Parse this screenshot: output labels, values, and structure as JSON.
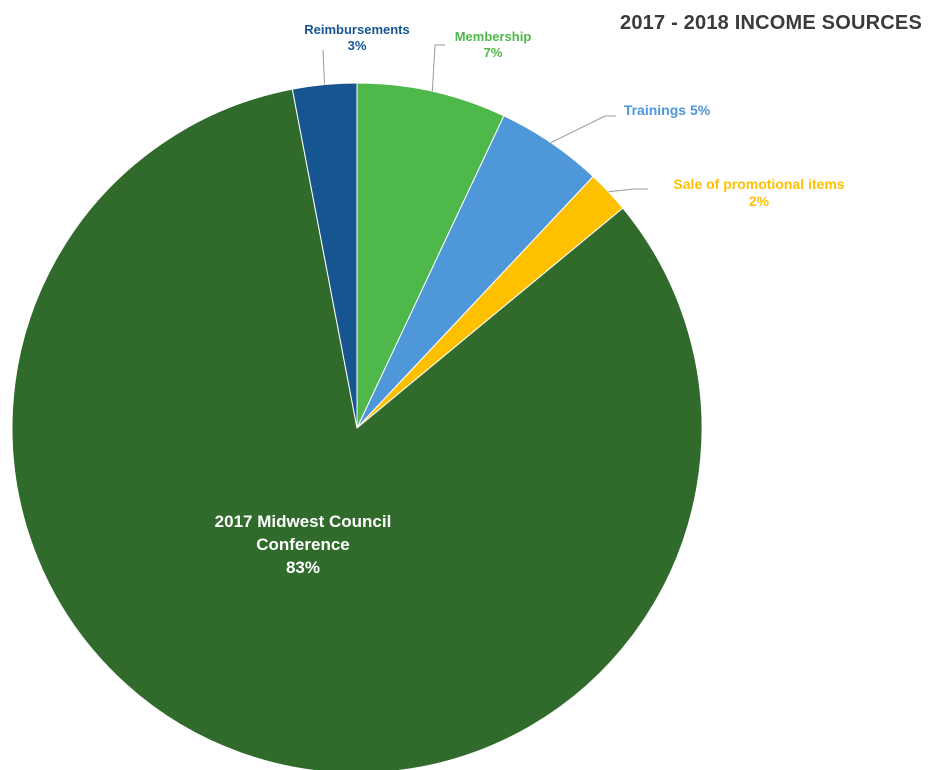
{
  "chart_data": {
    "type": "pie",
    "title": "2017 - 2018 INCOME SOURCES",
    "slices": [
      {
        "label": "Membership",
        "value": 7,
        "value_label": "7%",
        "color": "#4fb84a"
      },
      {
        "label": "Trainings",
        "value": 5,
        "value_label": "5%",
        "color": "#4e97d8"
      },
      {
        "label": "Sale of promotional items",
        "value": 2,
        "value_label": "2%",
        "color": "#ffc000"
      },
      {
        "label": "2017 Midwest Council Conference",
        "value": 83,
        "value_label": "83%",
        "color": "#316b2c"
      },
      {
        "label": "Reimbursements",
        "value": 3,
        "value_label": "3%",
        "color": "#175590"
      }
    ],
    "start_position": "top",
    "direction": "clockwise"
  },
  "labels": {
    "reimbursements": {
      "name": "Reimbursements",
      "pct": "3%",
      "color": "#175590"
    },
    "membership": {
      "name": "Membership",
      "pct": "7%",
      "color": "#4fb84a"
    },
    "trainings": {
      "text": "Trainings 5%",
      "color": "#4e97d8"
    },
    "sale": {
      "name": "Sale of promotional items",
      "pct": "2%",
      "color": "#ffc000"
    },
    "conference": {
      "line1": "2017 Midwest Council",
      "line2": "Conference",
      "pct": "83%"
    }
  }
}
